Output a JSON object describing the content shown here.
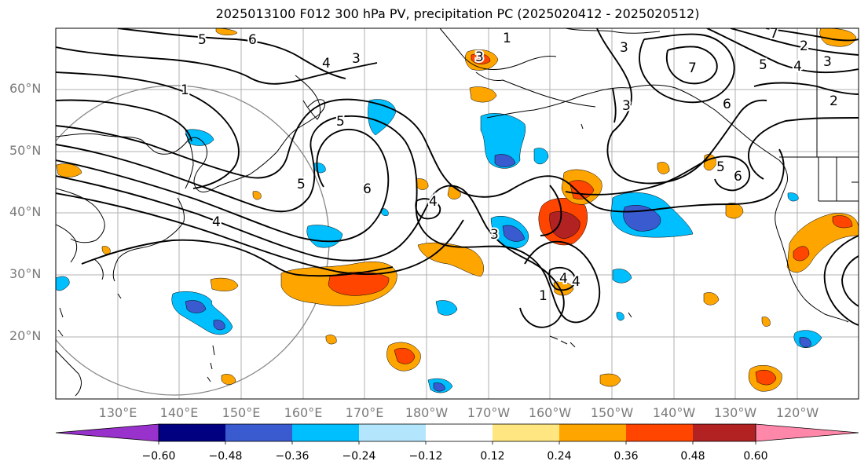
{
  "title": "2025013100 F012 300 hPa PV, precipitation PC (2025020412 - 2025020512)",
  "lat_labels": [
    "60°N",
    "50°N",
    "40°N",
    "30°N",
    "20°N"
  ],
  "lon_labels": [
    "130°E",
    "140°E",
    "150°E",
    "160°E",
    "170°E",
    "180°W",
    "170°W",
    "160°W",
    "150°W",
    "140°W",
    "130°W",
    "120°W"
  ],
  "colorbar": {
    "ticks": [
      "−0.60",
      "−0.48",
      "−0.36",
      "−0.24",
      "−0.12",
      "0.12",
      "0.24",
      "0.36",
      "0.48",
      "0.60"
    ],
    "colors": [
      "#9932cc",
      "#000080",
      "#3a5bcf",
      "#00bfff",
      "#b3e5fc",
      "#ffffff",
      "#ffe680",
      "#ffa500",
      "#ff4500",
      "#b22222",
      "#ff88aa"
    ]
  },
  "contour_labels": [
    "5",
    "6",
    "4",
    "3",
    "1",
    "5",
    "4",
    "6",
    "5",
    "4",
    "3",
    "7",
    "5",
    "4",
    "3",
    "2",
    "2",
    "3",
    "3",
    "6",
    "5",
    "6",
    "4",
    "3",
    "4",
    "1",
    "1",
    "7"
  ]
}
